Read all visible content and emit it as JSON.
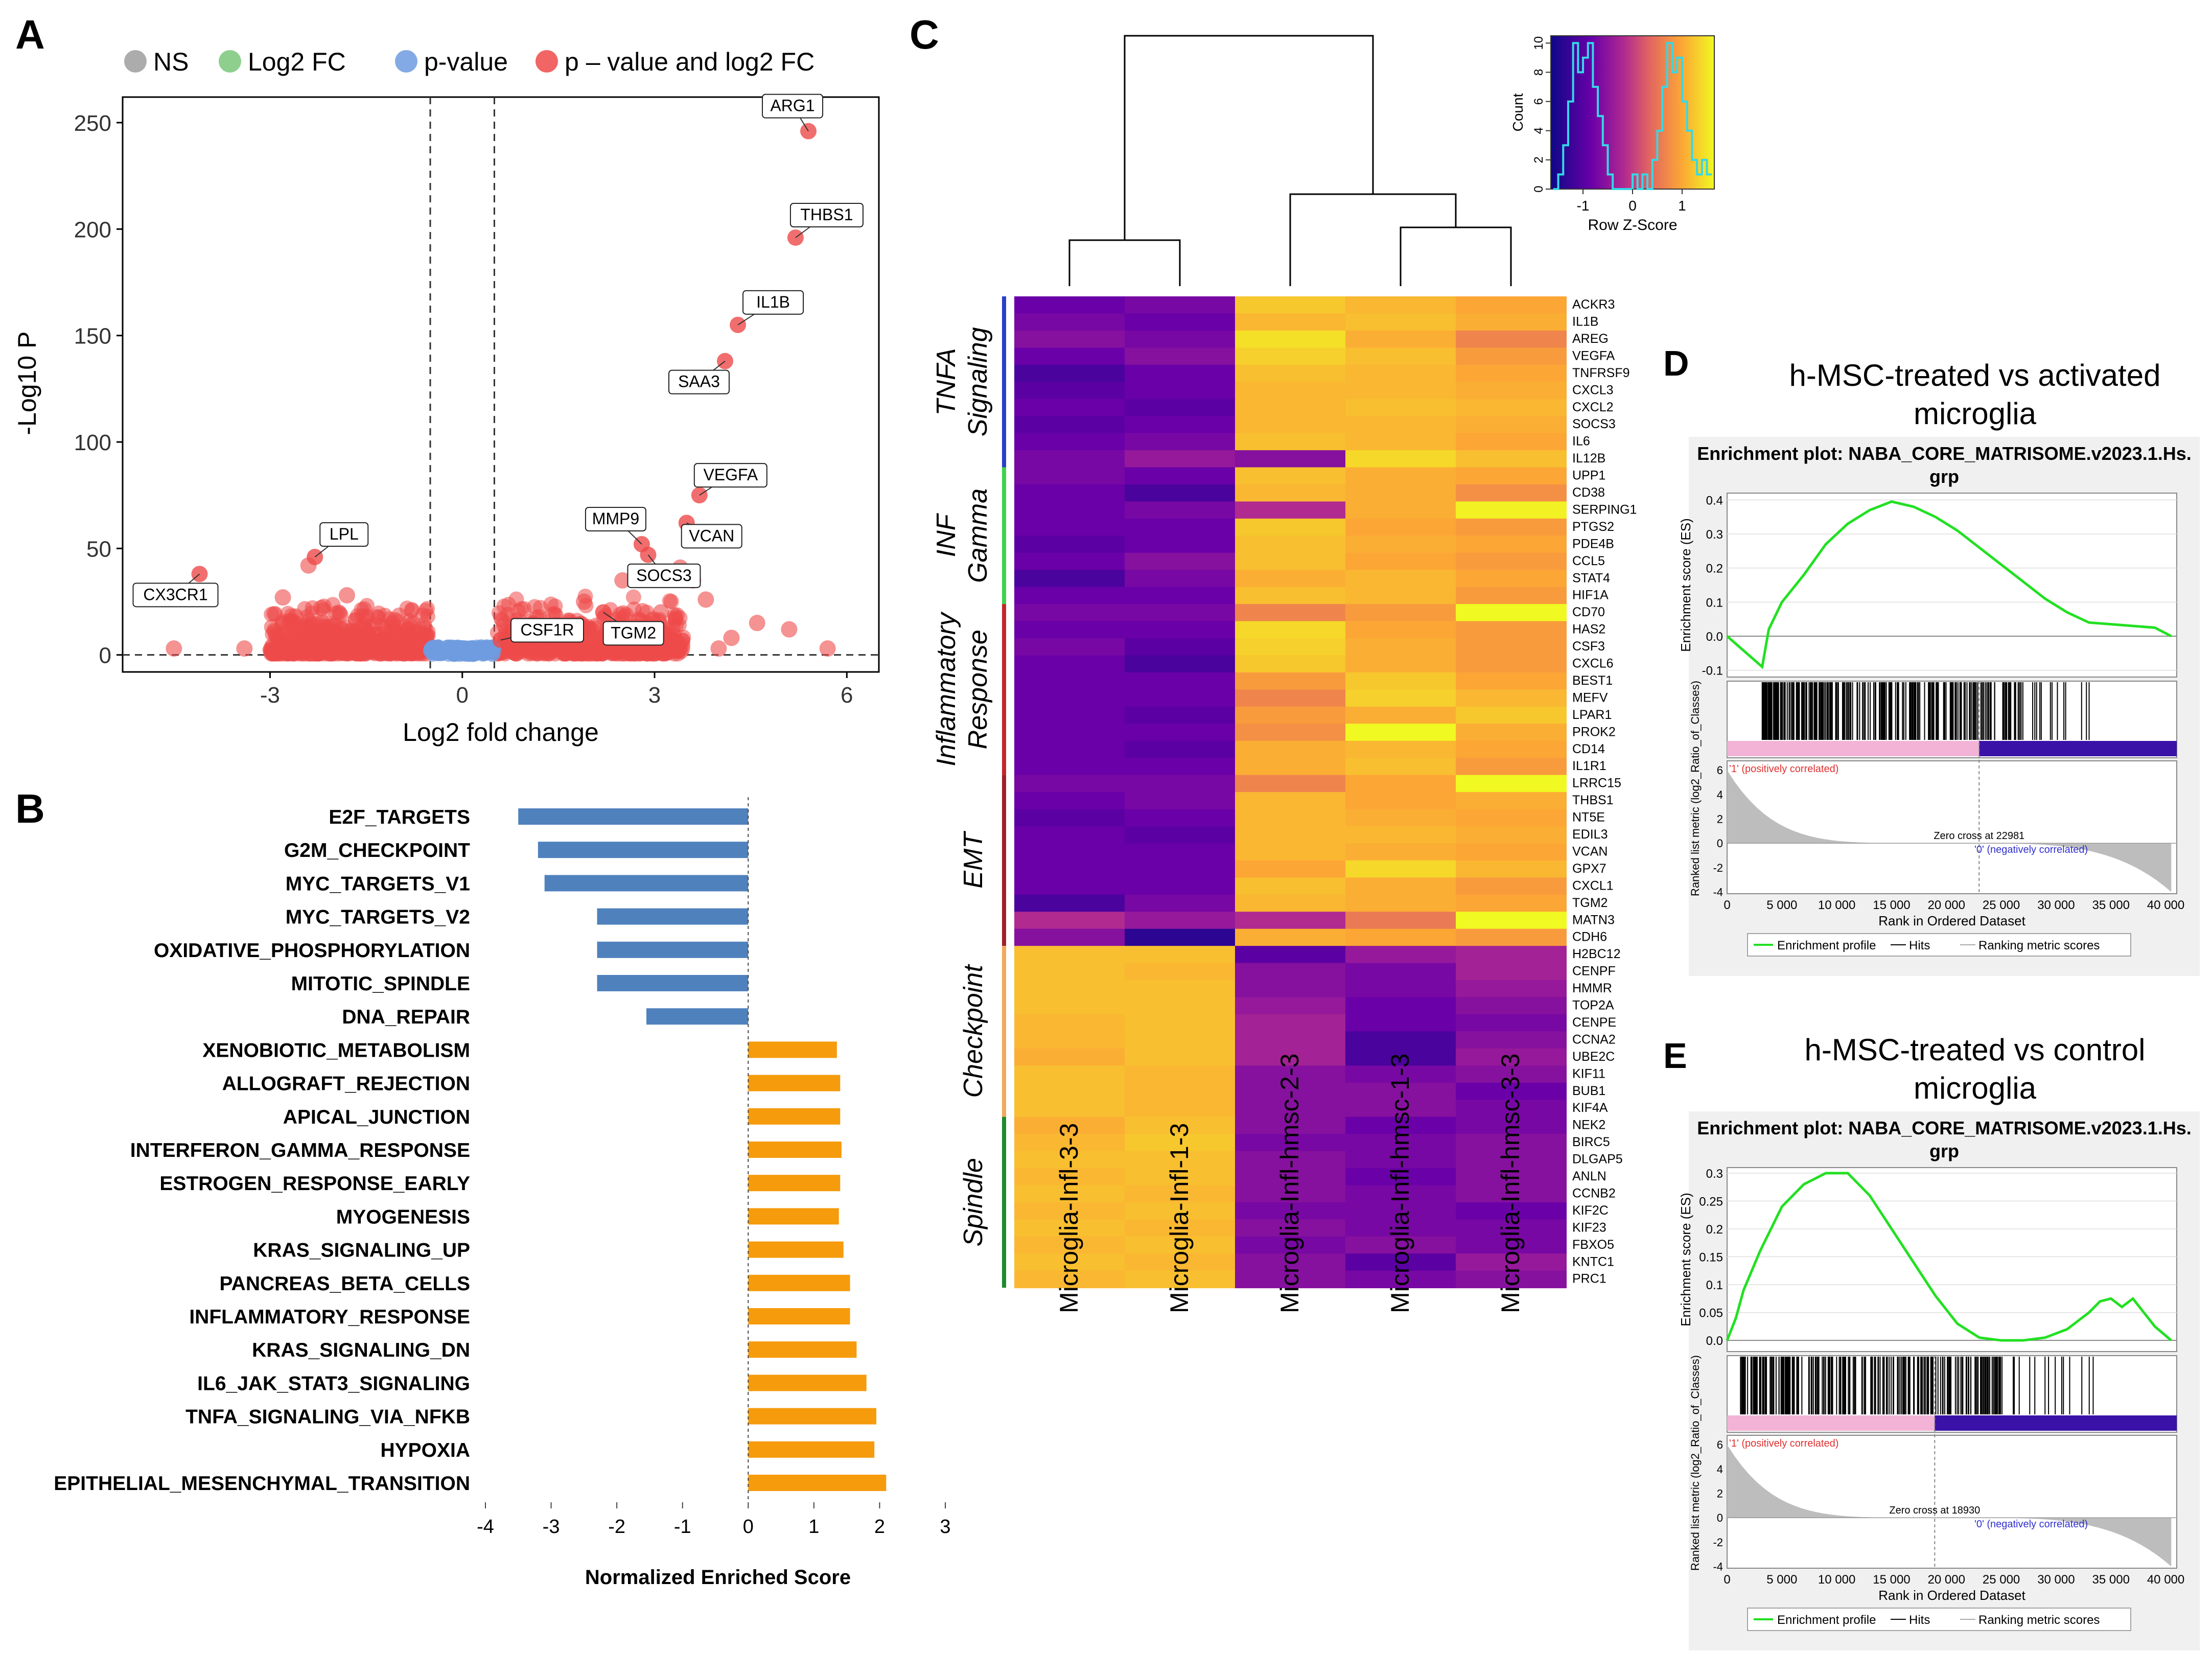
{
  "panel_letters": [
    "A",
    "B",
    "C",
    "D",
    "E"
  ],
  "chart_data": [
    {
      "id": "A",
      "type": "scatter",
      "title": "",
      "xlabel": "Log2 fold change",
      "ylabel": "-Log10 P",
      "xlim": [
        -5.3,
        6.5
      ],
      "ylim": [
        -8,
        262
      ],
      "xticks": [
        -3,
        0,
        3,
        6
      ],
      "yticks": [
        0,
        50,
        100,
        150,
        200,
        250
      ],
      "fc_cutoff": 0.5,
      "p_cutoff_y": 0,
      "legend": [
        {
          "label": "NS",
          "color": "#9e9e9e"
        },
        {
          "label": "Log2 FC",
          "color": "#7ac77a"
        },
        {
          "label": "p-value",
          "color": "#6f9be0"
        },
        {
          "label": "p – value and log2 FC",
          "color": "#ee4a4a"
        }
      ],
      "labeled_points": [
        {
          "gene": "ARG1",
          "x": 5.4,
          "y": 246
        },
        {
          "gene": "THBS1",
          "x": 5.2,
          "y": 196
        },
        {
          "gene": "IL1B",
          "x": 4.3,
          "y": 155
        },
        {
          "gene": "SAA3",
          "x": 4.1,
          "y": 138
        },
        {
          "gene": "VEGFA",
          "x": 3.7,
          "y": 75
        },
        {
          "gene": "VCAN",
          "x": 3.5,
          "y": 62
        },
        {
          "gene": "MMP9",
          "x": 2.8,
          "y": 52
        },
        {
          "gene": "SOCS3",
          "x": 2.9,
          "y": 47
        },
        {
          "gene": "TGM2",
          "x": 2.2,
          "y": 20
        },
        {
          "gene": "CSF1R",
          "x": 0.6,
          "y": 7
        },
        {
          "gene": "LPL",
          "x": -2.3,
          "y": 46
        },
        {
          "gene": "CX3CR1",
          "x": -4.1,
          "y": 38
        }
      ],
      "extra_points": [
        {
          "x": -3.4,
          "y": 3
        },
        {
          "x": -2.8,
          "y": 27
        },
        {
          "x": -2.4,
          "y": 42
        },
        {
          "x": -2.2,
          "y": 22
        },
        {
          "x": -1.8,
          "y": 28
        },
        {
          "x": -1.5,
          "y": 18
        },
        {
          "x": -2.6,
          "y": 18
        },
        {
          "x": -4.5,
          "y": 3
        },
        {
          "x": 3.4,
          "y": 41
        },
        {
          "x": 3.6,
          "y": 35
        },
        {
          "x": 3.8,
          "y": 26
        },
        {
          "x": 3.1,
          "y": 20
        },
        {
          "x": 4.2,
          "y": 8
        },
        {
          "x": 4.6,
          "y": 15
        },
        {
          "x": 5.1,
          "y": 12
        },
        {
          "x": 5.7,
          "y": 3
        },
        {
          "x": 3.9,
          "y": 55
        },
        {
          "x": 2.5,
          "y": 35
        },
        {
          "x": 1.9,
          "y": 25
        },
        {
          "x": 4.0,
          "y": 3
        },
        {
          "x": 3.3,
          "y": 9
        },
        {
          "x": 2.7,
          "y": 12
        }
      ]
    },
    {
      "id": "B",
      "type": "bar",
      "title": "",
      "xlabel": "Normalized Enriched Score",
      "ylabel": "",
      "xlim": [
        -4,
        3
      ],
      "xticks": [
        -4,
        -3,
        -2,
        -1,
        0,
        1,
        2,
        3
      ],
      "colors": {
        "negative": "#4f81bd",
        "positive": "#f59b0c"
      },
      "categories": [
        "E2F_TARGETS",
        "G2M_CHECKPOINT",
        "MYC_TARGETS_V1",
        "MYC_TARGETS_V2",
        "OXIDATIVE_PHOSPHORYLATION",
        "MITOTIC_SPINDLE",
        "DNA_REPAIR",
        "XENOBIOTIC_METABOLISM",
        "ALLOGRAFT_REJECTION",
        "APICAL_JUNCTION",
        "INTERFERON_GAMMA_RESPONSE",
        "ESTROGEN_RESPONSE_EARLY",
        "MYOGENESIS",
        "KRAS_SIGNALING_UP",
        "PANCREAS_BETA_CELLS",
        "INFLAMMATORY_RESPONSE",
        "KRAS_SIGNALING_DN",
        "IL6_JAK_STAT3_SIGNALING",
        "TNFA_SIGNALING_VIA_NFKB",
        "HYPOXIA",
        "EPITHELIAL_MESENCHYMAL_TRANSITION"
      ],
      "values": [
        -3.5,
        -3.2,
        -3.1,
        -2.3,
        -2.3,
        -2.3,
        -1.55,
        1.35,
        1.4,
        1.4,
        1.42,
        1.4,
        1.38,
        1.45,
        1.55,
        1.55,
        1.65,
        1.8,
        1.95,
        1.92,
        2.1
      ]
    },
    {
      "id": "C",
      "type": "heatmap",
      "title": "",
      "columns": [
        "Microglia-Infl-3-3",
        "Microglia-Infl-1-3",
        "Microglia-Infl-hmsc-2-3",
        "Microglia-Infl-hmsc-1-3",
        "Microglia-Infl-hmsc-3-3"
      ],
      "rows": [
        "ACKR3",
        "IL1B",
        "AREG",
        "VEGFA",
        "TNFRSF9",
        "CXCL3",
        "CXCL2",
        "SOCS3",
        "IL6",
        "IL12B",
        "UPP1",
        "CD38",
        "SERPING1",
        "PTGS2",
        "PDE4B",
        "CCL5",
        "STAT4",
        "HIF1A",
        "CD70",
        "HAS2",
        "CSF3",
        "CXCL6",
        "BEST1",
        "MEFV",
        "LPAR1",
        "PROK2",
        "CD14",
        "IL1R1",
        "LRRC15",
        "THBS1",
        "NT5E",
        "EDIL3",
        "VCAN",
        "GPX7",
        "CXCL1",
        "TGM2",
        "MATN3",
        "CDH6",
        "H2BC12",
        "CENPF",
        "HMMR",
        "TOP2A",
        "CENPE",
        "CCNA2",
        "UBE2C",
        "KIF11",
        "BUB1",
        "KIF4A",
        "NEK2",
        "BIRC5",
        "DLGAP5",
        "ANLN",
        "CCNB2",
        "KIF2C",
        "KIF23",
        "FBXO5",
        "KNTC1",
        "PRC1"
      ],
      "groups": [
        {
          "label": "TNFA Signaling",
          "start": 0,
          "end": 10,
          "color": "#2a3fc9"
        },
        {
          "label": "INF Gamma",
          "start": 10,
          "end": 18,
          "color": "#3fd24b"
        },
        {
          "label": "Inflammatory Response",
          "start": 18,
          "end": 28,
          "color": "#c0272d"
        },
        {
          "label": "EMT",
          "start": 28,
          "end": 38,
          "color": "#a0202a"
        },
        {
          "label": "Checkpoint",
          "start": 38,
          "end": 48,
          "color": "#f4a75b"
        },
        {
          "label": "Spindle",
          "start": 48,
          "end": 58,
          "color": "#1e8a2c"
        }
      ],
      "z": [
        [
          -1.0,
          -0.9,
          1.0,
          0.8,
          0.6
        ],
        [
          -0.9,
          -1.0,
          0.8,
          0.9,
          0.7
        ],
        [
          -0.8,
          -0.9,
          1.3,
          0.7,
          0.3
        ],
        [
          -1.0,
          -0.8,
          1.1,
          0.9,
          0.5
        ],
        [
          -1.2,
          -1.0,
          0.9,
          0.8,
          0.6
        ],
        [
          -1.1,
          -1.0,
          0.8,
          0.8,
          0.7
        ],
        [
          -1.0,
          -1.1,
          0.8,
          0.9,
          0.8
        ],
        [
          -1.1,
          -1.0,
          0.8,
          0.8,
          0.7
        ],
        [
          -1.0,
          -0.9,
          0.9,
          0.8,
          0.6
        ],
        [
          -0.9,
          -0.7,
          -0.8,
          1.2,
          0.9
        ],
        [
          -0.9,
          -1.0,
          0.9,
          0.7,
          0.6
        ],
        [
          -1.0,
          -1.2,
          0.8,
          0.7,
          0.4
        ],
        [
          -1.0,
          -0.9,
          -0.5,
          0.7,
          1.5
        ],
        [
          -1.0,
          -1.0,
          1.0,
          0.6,
          0.5
        ],
        [
          -1.1,
          -1.0,
          0.9,
          0.7,
          0.6
        ],
        [
          -1.0,
          -0.8,
          0.9,
          0.6,
          0.5
        ],
        [
          -1.2,
          -0.9,
          0.7,
          0.8,
          0.6
        ],
        [
          -1.0,
          -1.0,
          0.9,
          0.8,
          0.5
        ],
        [
          -0.9,
          -0.9,
          0.3,
          0.5,
          1.7
        ],
        [
          -1.0,
          -1.0,
          1.2,
          0.6,
          0.5
        ],
        [
          -0.9,
          -1.1,
          1.1,
          0.7,
          0.5
        ],
        [
          -1.0,
          -1.2,
          1.0,
          0.7,
          0.5
        ],
        [
          -1.0,
          -1.0,
          0.5,
          1.0,
          0.6
        ],
        [
          -1.0,
          -1.0,
          0.3,
          1.1,
          0.8
        ],
        [
          -1.0,
          -1.1,
          0.5,
          0.7,
          1.0
        ],
        [
          -1.0,
          -1.0,
          0.4,
          1.6,
          0.7
        ],
        [
          -1.0,
          -1.1,
          0.7,
          0.8,
          0.6
        ],
        [
          -1.0,
          -1.0,
          0.7,
          0.9,
          0.5
        ],
        [
          -0.9,
          -0.9,
          0.3,
          0.6,
          1.6
        ],
        [
          -1.0,
          -0.9,
          0.8,
          0.6,
          0.7
        ],
        [
          -1.1,
          -1.0,
          0.8,
          0.7,
          0.6
        ],
        [
          -1.0,
          -1.1,
          0.8,
          0.8,
          0.7
        ],
        [
          -1.0,
          -1.0,
          0.8,
          0.7,
          0.6
        ],
        [
          -1.0,
          -1.0,
          0.6,
          1.2,
          0.8
        ],
        [
          -1.0,
          -1.0,
          0.9,
          0.7,
          0.5
        ],
        [
          -1.2,
          -0.9,
          0.8,
          0.7,
          0.6
        ],
        [
          -0.5,
          -0.7,
          -0.5,
          0.2,
          1.7
        ],
        [
          -0.8,
          -1.4,
          0.7,
          0.6,
          0.5
        ],
        [
          0.9,
          0.9,
          -1.1,
          -0.7,
          -0.6
        ],
        [
          0.9,
          0.8,
          -0.8,
          -0.9,
          -0.6
        ],
        [
          0.9,
          0.9,
          -0.8,
          -0.9,
          -0.7
        ],
        [
          0.9,
          0.9,
          -0.7,
          -1.0,
          -0.8
        ],
        [
          0.8,
          0.9,
          -0.6,
          -1.0,
          -0.9
        ],
        [
          0.8,
          0.9,
          -0.6,
          -1.2,
          -0.8
        ],
        [
          0.7,
          0.9,
          -0.6,
          -1.2,
          -0.7
        ],
        [
          0.9,
          0.8,
          -0.8,
          -0.9,
          -0.8
        ],
        [
          0.9,
          0.8,
          -0.8,
          -0.8,
          -1.0
        ],
        [
          0.9,
          0.8,
          -0.8,
          -0.8,
          -0.9
        ],
        [
          0.7,
          0.9,
          -0.8,
          -1.0,
          -0.9
        ],
        [
          0.8,
          1.0,
          -0.9,
          -0.9,
          -0.8
        ],
        [
          0.9,
          0.9,
          -0.8,
          -0.9,
          -0.8
        ],
        [
          0.8,
          0.9,
          -0.8,
          -1.0,
          -0.8
        ],
        [
          0.9,
          0.8,
          -0.8,
          -0.9,
          -0.8
        ],
        [
          0.8,
          0.9,
          -0.9,
          -0.9,
          -1.0
        ],
        [
          0.9,
          0.8,
          -0.8,
          -0.9,
          -0.9
        ],
        [
          0.8,
          0.9,
          -0.9,
          -0.8,
          -0.9
        ],
        [
          0.9,
          0.8,
          -0.8,
          -1.1,
          -0.7
        ],
        [
          0.8,
          0.9,
          -0.8,
          -0.9,
          -0.8
        ]
      ],
      "color_key": {
        "xlabel": "Row Z-Score",
        "ylabel": "Count",
        "xticks": [
          -1,
          0,
          1
        ],
        "yticks": [
          0,
          2,
          4,
          6,
          8,
          10
        ],
        "hist_x": [
          -1.6,
          -1.5,
          -1.4,
          -1.3,
          -1.2,
          -1.1,
          -1.0,
          -0.9,
          -0.8,
          -0.7,
          -0.6,
          -0.5,
          -0.4,
          -0.3,
          -0.2,
          -0.1,
          0.0,
          0.1,
          0.2,
          0.3,
          0.4,
          0.5,
          0.6,
          0.7,
          0.8,
          0.9,
          1.0,
          1.1,
          1.2,
          1.3,
          1.4,
          1.5
        ],
        "hist_counts": [
          0,
          1,
          3,
          6,
          10,
          8,
          9,
          10,
          7,
          5,
          3,
          1,
          0,
          0,
          0,
          0,
          1,
          0,
          1,
          0,
          2,
          4,
          7,
          10,
          8,
          9,
          6,
          4,
          2,
          1,
          2,
          1
        ]
      }
    },
    {
      "id": "D",
      "type": "line",
      "heading": "h-MSC-treated vs activated microglia",
      "title": "Enrichment plot: NABA_CORE_MATRISOME.v2023.1.Hs. grp",
      "ylabel": "Enrichment score (ES)",
      "ylabel2": "Ranked list metric (log2_Ratio_of_Classes)",
      "xlabel": "Rank in Ordered Dataset",
      "xlim": [
        0,
        41000
      ],
      "ylim": [
        -0.12,
        0.42
      ],
      "yticks": [
        -0.1,
        0.0,
        0.1,
        0.2,
        0.3,
        0.4
      ],
      "xticks": [
        0,
        5000,
        10000,
        15000,
        20000,
        25000,
        30000,
        35000,
        40000
      ],
      "xticklabels": [
        "0",
        "5 000",
        "10 000",
        "15 000",
        "20 000",
        "25 000",
        "30 000",
        "35 000",
        "40 000"
      ],
      "metric_yticks": [
        -4,
        -2,
        0,
        2,
        4,
        6
      ],
      "x": [
        0,
        3200,
        3800,
        5000,
        7000,
        9000,
        11000,
        13000,
        15000,
        17000,
        19000,
        21000,
        23000,
        25000,
        27000,
        29000,
        31000,
        33000,
        35000,
        37000,
        39000,
        40500
      ],
      "es": [
        0.0,
        -0.09,
        0.02,
        0.1,
        0.18,
        0.27,
        0.33,
        0.37,
        0.395,
        0.38,
        0.35,
        0.31,
        0.26,
        0.21,
        0.16,
        0.11,
        0.07,
        0.04,
        0.035,
        0.03,
        0.025,
        0.0
      ],
      "zero_cross": 22981,
      "zero_cross_label": "Zero cross at 22981",
      "pos_label": "'1' (positively correlated)",
      "neg_label": "'0' (negatively correlated)",
      "legend": [
        "Enrichment profile",
        "Hits",
        "Ranking metric scores"
      ]
    },
    {
      "id": "E",
      "type": "line",
      "heading": "h-MSC-treated vs control microglia",
      "title": "Enrichment plot: NABA_CORE_MATRISOME.v2023.1.Hs. grp",
      "ylabel": "Enrichment score (ES)",
      "ylabel2": "Ranked list metric (log2_Ratio_of_Classes)",
      "xlabel": "Rank in Ordered Dataset",
      "xlim": [
        0,
        41000
      ],
      "ylim": [
        -0.02,
        0.31
      ],
      "yticks": [
        0.0,
        0.05,
        0.1,
        0.15,
        0.2,
        0.25,
        0.3
      ],
      "xticklabels_values": [
        0,
        5000,
        10000,
        15000,
        20000,
        25000,
        30000,
        35000,
        40000
      ],
      "xticklabels": [
        "0",
        "5 000",
        "10 000",
        "15 000",
        "20 000",
        "25 000",
        "30 000",
        "35 000",
        "40 000"
      ],
      "metric_yticks": [
        -4,
        -2,
        0,
        2,
        4,
        6
      ],
      "x": [
        0,
        800,
        1500,
        3000,
        5000,
        7000,
        9000,
        11000,
        13000,
        15000,
        17000,
        19000,
        21000,
        23000,
        25000,
        27000,
        29000,
        31000,
        33000,
        34000,
        35000,
        36000,
        37000,
        38000,
        39000,
        40500
      ],
      "es": [
        0.0,
        0.04,
        0.09,
        0.16,
        0.24,
        0.28,
        0.3,
        0.3,
        0.26,
        0.2,
        0.14,
        0.08,
        0.03,
        0.005,
        0.0,
        0.0,
        0.005,
        0.02,
        0.05,
        0.07,
        0.075,
        0.06,
        0.075,
        0.05,
        0.025,
        0.0
      ],
      "zero_cross": 18930,
      "zero_cross_label": "Zero cross at 18930",
      "pos_label": "'1' (positively correlated)",
      "neg_label": "'0' (negatively correlated)",
      "legend": [
        "Enrichment profile",
        "Hits",
        "Ranking metric scores"
      ]
    }
  ]
}
